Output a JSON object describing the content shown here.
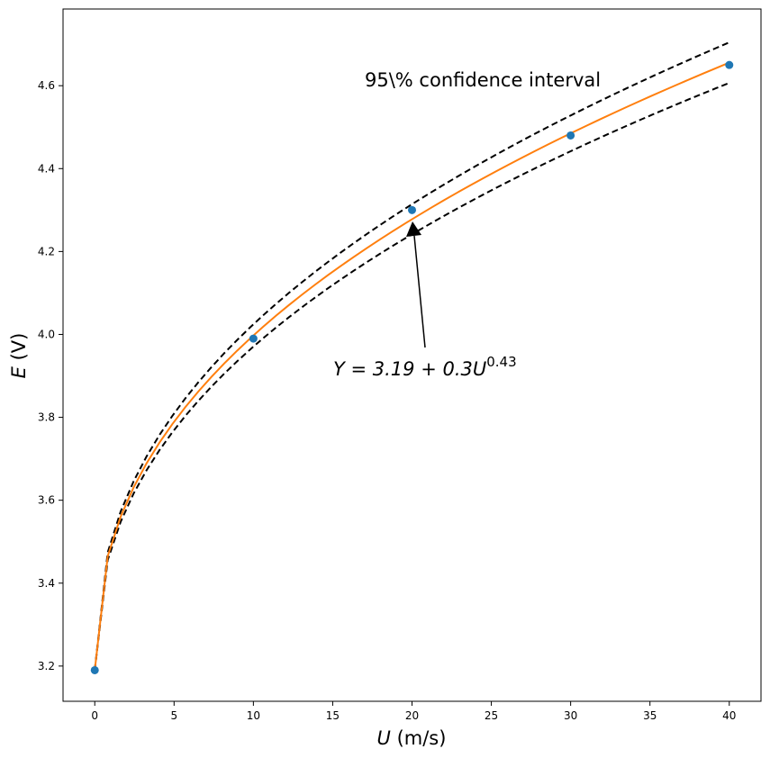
{
  "chart_data": {
    "type": "scatter",
    "xlabel_var": "U",
    "xlabel_unit": " (m/s)",
    "ylabel_var": "E",
    "ylabel_unit": " (V)",
    "xlim": [
      -2,
      42
    ],
    "ylim": [
      3.115,
      4.785
    ],
    "x_ticks": [
      0,
      5,
      10,
      15,
      20,
      25,
      30,
      35,
      40
    ],
    "x_tick_labels": [
      "0",
      "5",
      "10",
      "15",
      "20",
      "25",
      "30",
      "35",
      "40"
    ],
    "y_ticks": [
      3.2,
      3.4,
      3.6,
      3.8,
      4.0,
      4.2,
      4.4,
      4.6
    ],
    "y_tick_labels": [
      "3.2",
      "3.4",
      "3.6",
      "3.8",
      "4.0",
      "4.2",
      "4.4",
      "4.6"
    ],
    "grid": false,
    "points": {
      "x": [
        0,
        10,
        20,
        30,
        40
      ],
      "y": [
        3.19,
        3.99,
        4.3,
        4.48,
        4.65
      ],
      "color": "#1f77b4"
    },
    "fit": {
      "a": 3.19,
      "b": 0.3,
      "c": 0.43,
      "color": "#ff7f0e"
    },
    "confidence_band": {
      "lower_b": 0.29,
      "upper_b": 0.31,
      "color": "#000000",
      "style": "dashed"
    },
    "annotations": {
      "band_label": "95\\% confidence interval",
      "fit_label_main": "Y = 3.19 + 0.3U",
      "fit_label_exp": "0.43",
      "arrow_to": [
        20,
        4.27
      ]
    }
  }
}
